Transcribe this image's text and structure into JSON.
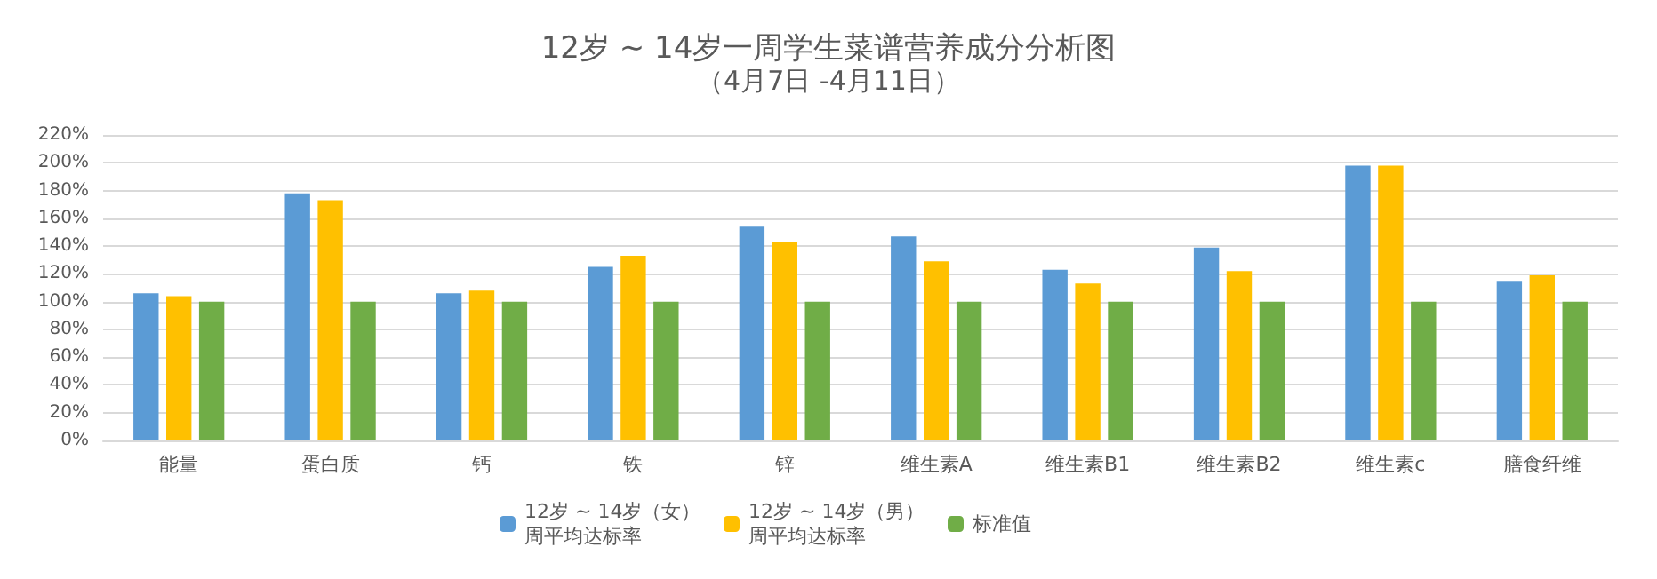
{
  "chart_data": {
    "type": "bar",
    "title": "12岁 ~ 14岁一周学生菜谱营养成分分析图",
    "subtitle": "（4月7日 -4月11日）",
    "categories": [
      "能量",
      "蛋白质",
      "钙",
      "铁",
      "锌",
      "维生素A",
      "维生素B1",
      "维生素B2",
      "维生素c",
      "膳食纤维"
    ],
    "series": [
      {
        "name": "12岁 ~ 14岁（女）周平均达标率",
        "color": "#5b9bd5",
        "values": [
          106,
          178,
          106,
          125,
          154,
          147,
          123,
          139,
          198,
          115
        ]
      },
      {
        "name": "12岁 ~ 14岁（男）周平均达标率",
        "color": "#ffc000",
        "values": [
          104,
          173,
          108,
          133,
          143,
          129,
          113,
          122,
          198,
          119
        ]
      },
      {
        "name": "标准值",
        "color": "#70ad47",
        "values": [
          100,
          100,
          100,
          100,
          100,
          100,
          100,
          100,
          100,
          100
        ]
      }
    ],
    "ylim": [
      0,
      220
    ],
    "yticks": [
      {
        "value": 0,
        "label": "0%"
      },
      {
        "value": 20,
        "label": "20%"
      },
      {
        "value": 40,
        "label": "40%"
      },
      {
        "value": 60,
        "label": "60%"
      },
      {
        "value": 80,
        "label": "80%"
      },
      {
        "value": 100,
        "label": "100%"
      },
      {
        "value": 120,
        "label": "120%"
      },
      {
        "value": 140,
        "label": "140%"
      },
      {
        "value": 160,
        "label": "160%"
      },
      {
        "value": 180,
        "label": "180%"
      },
      {
        "value": 200,
        "label": "200%"
      },
      {
        "value": 220,
        "label": "220%"
      }
    ],
    "grid": "y",
    "legend": "bottom"
  }
}
